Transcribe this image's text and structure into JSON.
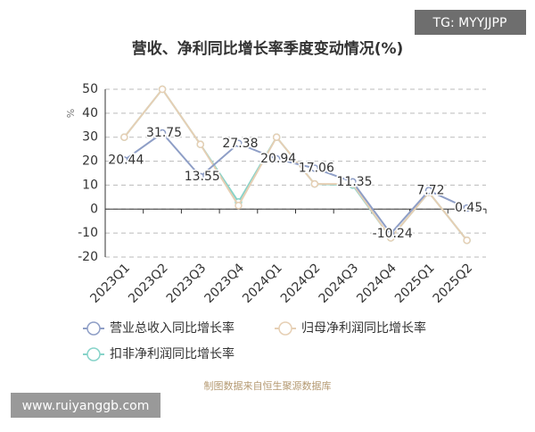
{
  "chart_data": {
    "type": "line",
    "title": "营收、净利同比增长率季度变动情况(%)",
    "y_label": "%",
    "categories": [
      "2023Q1",
      "2023Q2",
      "2023Q3",
      "2023Q4",
      "2024Q1",
      "2024Q2",
      "2024Q3",
      "2024Q4",
      "2025Q1",
      "2025Q2"
    ],
    "series": [
      {
        "name": "营业总收入同比增长率",
        "color": "#8e9ec6",
        "values": [
          20.44,
          31.75,
          13.55,
          27.38,
          20.94,
          17.06,
          11.35,
          -10.24,
          7.72,
          0.45
        ],
        "show_labels": true
      },
      {
        "name": "归母净利润同比增长率",
        "color": "#e6cfb4",
        "values": [
          30,
          50,
          27,
          1.5,
          30,
          10.5,
          10.5,
          -12,
          7,
          -13
        ],
        "show_labels": false
      },
      {
        "name": "扣非净利润同比增长率",
        "color": "#86d3c9",
        "values": [
          30,
          50,
          27,
          3,
          30,
          10.5,
          10,
          -12,
          7,
          -13
        ],
        "show_labels": false
      }
    ],
    "ylim": [
      -20,
      50
    ],
    "yticks": [
      -20,
      -10,
      0,
      10,
      20,
      30,
      40,
      50
    ],
    "grid": true
  },
  "watermark": "TG: MYYJJPP",
  "website": "www.ruiyanggb.com",
  "source": "制图数据来自恒生聚源数据库"
}
